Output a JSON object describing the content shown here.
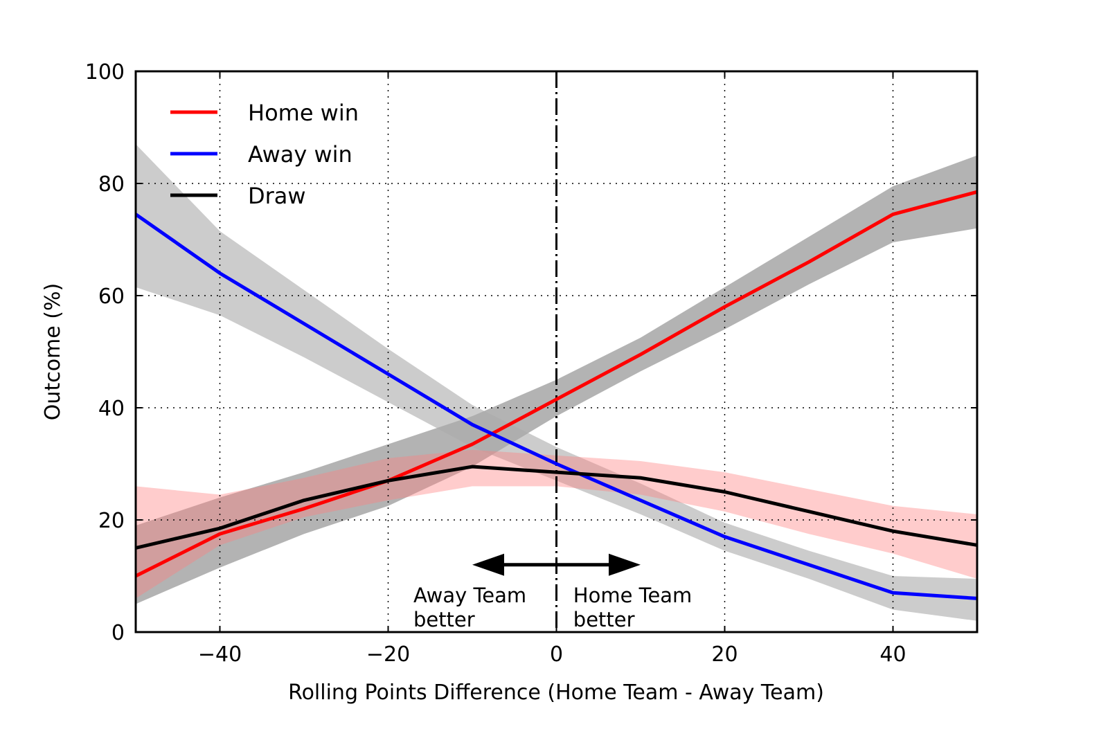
{
  "chart_data": {
    "type": "line",
    "title": "",
    "xlabel": "Rolling Points Difference (Home Team - Away Team)",
    "ylabel": "Outcome (%)",
    "xlim": [
      -50,
      50
    ],
    "ylim": [
      0,
      100
    ],
    "xticks": [
      -40,
      -20,
      0,
      20,
      40
    ],
    "xtick_labels": [
      "−40",
      "−20",
      "0",
      "20",
      "40"
    ],
    "yticks": [
      0,
      20,
      40,
      60,
      80,
      100
    ],
    "ytick_labels": [
      "0",
      "20",
      "40",
      "60",
      "80",
      "100"
    ],
    "grid": true,
    "legend_position": "upper left",
    "x": [
      -50,
      -40,
      -30,
      -20,
      -10,
      0,
      10,
      20,
      30,
      40,
      50
    ],
    "series": [
      {
        "name": "Home win",
        "color": "#ff0000",
        "band_color": "#999999",
        "band_opacity": 0.75,
        "values": [
          10,
          17.5,
          22,
          27,
          33.5,
          41.5,
          49.5,
          58,
          66,
          74.5,
          78.5
        ],
        "lower": [
          5,
          11.5,
          17.5,
          22.5,
          29.5,
          38.5,
          46.5,
          54,
          62,
          69.5,
          72
        ],
        "upper": [
          19,
          24,
          28.5,
          33.5,
          38.5,
          45,
          52.5,
          61.5,
          70.5,
          79.5,
          85
        ]
      },
      {
        "name": "Away win",
        "color": "#0000ff",
        "band_color": "#aaaaaa",
        "band_opacity": 0.6,
        "values": [
          74.5,
          64,
          55,
          46,
          37,
          30,
          23.5,
          17,
          12,
          7,
          6
        ],
        "lower": [
          61.5,
          56.5,
          49,
          41,
          33,
          27,
          21,
          14.5,
          9.5,
          4,
          2
        ],
        "upper": [
          87,
          71.5,
          61,
          50.5,
          40.5,
          33,
          26.5,
          19.5,
          14.5,
          10,
          9.5
        ]
      },
      {
        "name": "Draw",
        "color": "#000000",
        "band_color": "#ff8080",
        "band_opacity": 0.4,
        "values": [
          15,
          18.5,
          23.5,
          27,
          29.5,
          28.5,
          27.5,
          25,
          21.5,
          18,
          15.5
        ],
        "lower": [
          6,
          15.5,
          20.5,
          23.5,
          26,
          26,
          24.5,
          21.5,
          17.5,
          14,
          9.5
        ],
        "upper": [
          26,
          24.5,
          27.5,
          31,
          32.5,
          31.5,
          30.5,
          28.5,
          25.5,
          22.5,
          21
        ]
      }
    ],
    "annotations": [
      {
        "type": "vline",
        "x": 0,
        "style": "dashdot"
      },
      {
        "type": "double-arrow",
        "x_from": -10,
        "x_to": 10,
        "y": 12
      },
      {
        "text_lines": [
          "Away Team",
          "better"
        ],
        "x": -17,
        "y": 6.5
      },
      {
        "text_lines": [
          "Home Team",
          "better"
        ],
        "x": 2,
        "y": 6.5
      }
    ]
  }
}
